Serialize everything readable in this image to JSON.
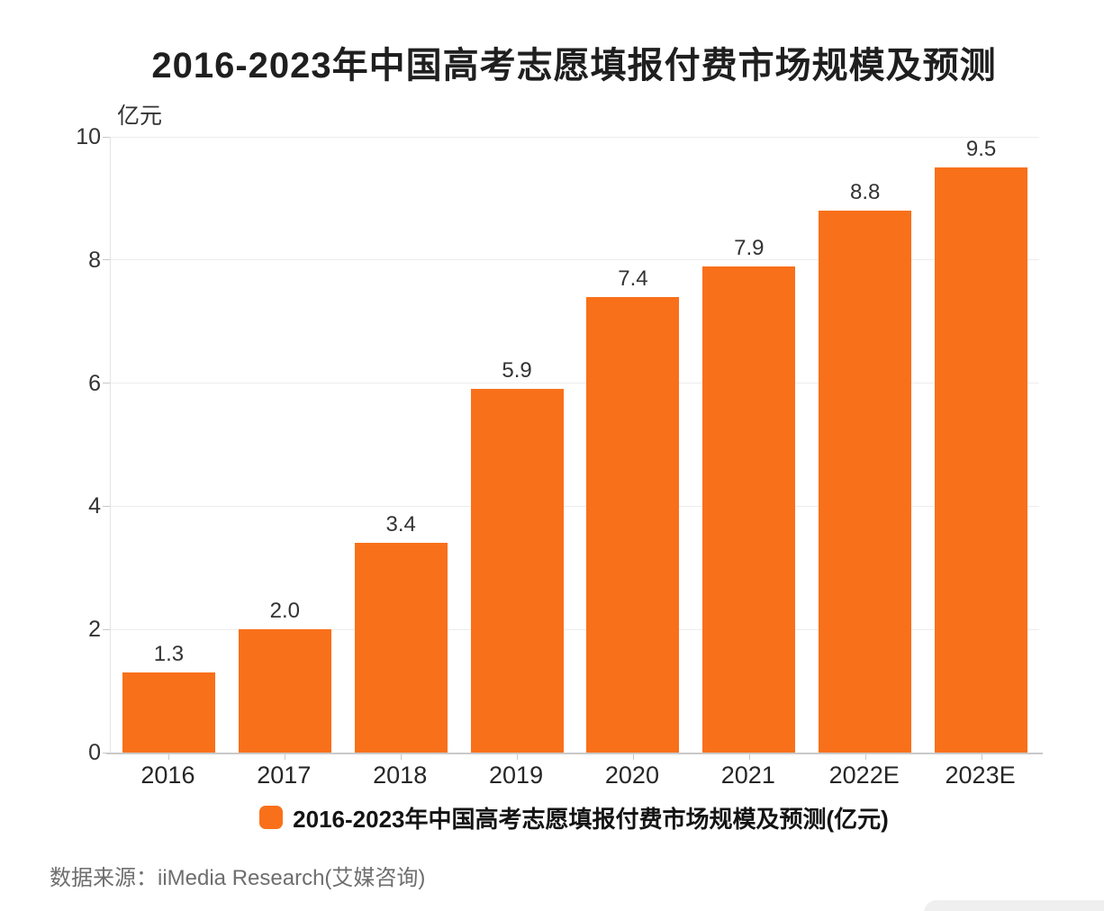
{
  "title": "2016-2023年中国高考志愿填报付费市场规模及预测",
  "unit_label": "亿元",
  "legend": {
    "label": "2016-2023年中国高考志愿填报付费市场规模及预测(亿元)",
    "marker_color": "#f9701a"
  },
  "source": "数据来源：iiMedia Research(艾媒咨询)",
  "colors": {
    "bar": "#f9701a",
    "grid": "#ededed",
    "axis": "#c9c9c9",
    "text": "#333333"
  },
  "chart_data": {
    "type": "bar",
    "title": "2016-2023年中国高考志愿填报付费市场规模及预测",
    "categories": [
      "2016",
      "2017",
      "2018",
      "2019",
      "2020",
      "2021",
      "2022E",
      "2023E"
    ],
    "values": [
      1.3,
      2.0,
      3.4,
      5.9,
      7.4,
      7.9,
      8.8,
      9.5
    ],
    "value_labels": [
      "1.3",
      "2.0",
      "3.4",
      "5.9",
      "7.4",
      "7.9",
      "8.8",
      "9.5"
    ],
    "xlabel": "",
    "ylabel": "亿元",
    "ylim": [
      0,
      10
    ],
    "yticks": [
      0,
      2,
      4,
      6,
      8,
      10
    ],
    "grid": true,
    "bar_color": "#f9701a",
    "legend_position": "bottom",
    "legend_entries": [
      "2016-2023年中国高考志愿填报付费市场规模及预测(亿元)"
    ]
  }
}
